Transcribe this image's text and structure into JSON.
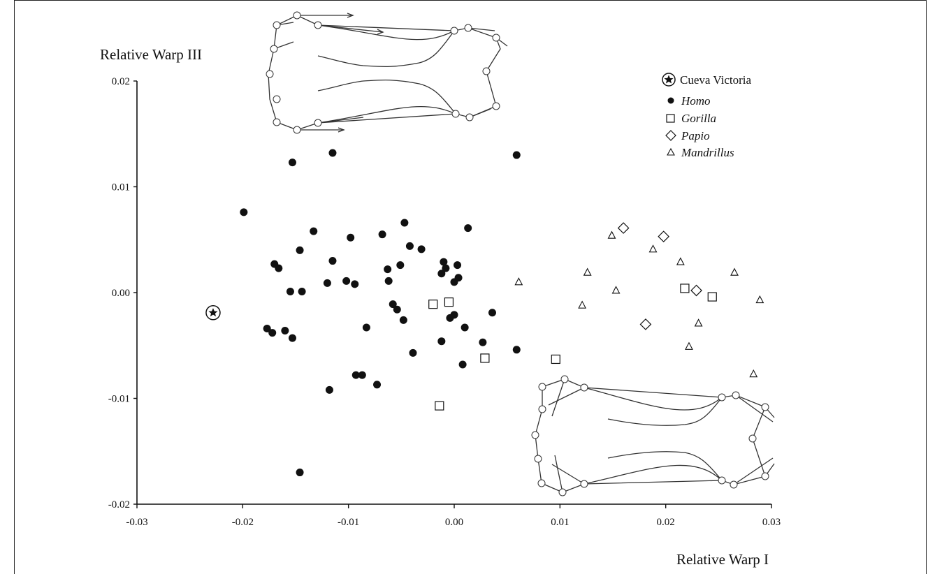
{
  "chart_data": {
    "type": "scatter",
    "title": "",
    "xlabel": "Relative Warp I",
    "ylabel": "Relative Warp III",
    "xlim": [
      -0.03,
      0.03
    ],
    "ylim": [
      -0.02,
      0.02
    ],
    "xticks": [
      "-0.03",
      "-0.02",
      "-0.01",
      "0.00",
      "0.01",
      "0.02",
      "0.03"
    ],
    "yticks": [
      "0.02",
      "0.01",
      "0.00",
      "-0.01",
      "-0.02"
    ],
    "grid": false,
    "legend_position": "top-right",
    "series": [
      {
        "name": "Cueva Victoria",
        "marker": "circled-star",
        "points": [
          [
            -0.0228,
            -0.0019
          ]
        ]
      },
      {
        "name": "Homo",
        "marker": "filled-circle",
        "points": [
          [
            -0.0115,
            0.0132
          ],
          [
            -0.0153,
            0.0123
          ],
          [
            0.0059,
            0.013
          ],
          [
            -0.0199,
            0.0076
          ],
          [
            -0.0133,
            0.0058
          ],
          [
            -0.0098,
            0.0052
          ],
          [
            -0.0068,
            0.0055
          ],
          [
            -0.0047,
            0.0066
          ],
          [
            -0.0042,
            0.0044
          ],
          [
            -0.0031,
            0.0041
          ],
          [
            0.0013,
            0.0061
          ],
          [
            -0.0146,
            0.004
          ],
          [
            -0.017,
            0.0027
          ],
          [
            -0.0166,
            0.0023
          ],
          [
            -0.0115,
            0.003
          ],
          [
            -0.012,
            0.0009
          ],
          [
            -0.0155,
            0.0001
          ],
          [
            -0.0144,
            0.0001
          ],
          [
            -0.0102,
            0.0011
          ],
          [
            -0.0094,
            0.0008
          ],
          [
            -0.0063,
            0.0022
          ],
          [
            -0.0051,
            0.0026
          ],
          [
            -0.0062,
            0.0011
          ],
          [
            -0.001,
            0.0029
          ],
          [
            -0.0008,
            0.0023
          ],
          [
            -0.0012,
            0.0018
          ],
          [
            0.0,
            0.001
          ],
          [
            0.0003,
            0.0026
          ],
          [
            0.0004,
            0.0014
          ],
          [
            -0.0058,
            -0.0011
          ],
          [
            -0.0054,
            -0.0016
          ],
          [
            -0.0048,
            -0.0026
          ],
          [
            -0.0004,
            -0.0024
          ],
          [
            0.0,
            -0.0021
          ],
          [
            0.001,
            -0.0033
          ],
          [
            0.0036,
            -0.0019
          ],
          [
            -0.0177,
            -0.0034
          ],
          [
            -0.0172,
            -0.0038
          ],
          [
            -0.016,
            -0.0036
          ],
          [
            -0.0153,
            -0.0043
          ],
          [
            -0.0083,
            -0.0033
          ],
          [
            -0.0039,
            -0.0057
          ],
          [
            -0.0012,
            -0.0046
          ],
          [
            0.0027,
            -0.0047
          ],
          [
            0.0059,
            -0.0054
          ],
          [
            0.0008,
            -0.0068
          ],
          [
            -0.0093,
            -0.0078
          ],
          [
            -0.0087,
            -0.0078
          ],
          [
            -0.0073,
            -0.0087
          ],
          [
            -0.0118,
            -0.0092
          ],
          [
            -0.0146,
            -0.017
          ]
        ]
      },
      {
        "name": "Gorilla",
        "marker": "open-square",
        "points": [
          [
            -0.002,
            -0.0011
          ],
          [
            -0.0005,
            -0.0009
          ],
          [
            0.0029,
            -0.0062
          ],
          [
            0.0096,
            -0.0063
          ],
          [
            -0.0014,
            -0.0107
          ],
          [
            0.0218,
            0.0004
          ],
          [
            0.0244,
            -0.0004
          ]
        ]
      },
      {
        "name": "Papio",
        "marker": "open-diamond",
        "points": [
          [
            0.016,
            0.0061
          ],
          [
            0.0198,
            0.0053
          ],
          [
            0.0229,
            0.0002
          ],
          [
            0.0181,
            -0.003
          ]
        ]
      },
      {
        "name": "Mandrillus",
        "marker": "open-triangle",
        "points": [
          [
            0.0061,
            0.001
          ],
          [
            0.0126,
            0.0019
          ],
          [
            0.0149,
            0.0054
          ],
          [
            0.0188,
            0.0041
          ],
          [
            0.0214,
            0.0029
          ],
          [
            0.0265,
            0.0019
          ],
          [
            0.0121,
            -0.0012
          ],
          [
            0.0153,
            0.0002
          ],
          [
            0.0231,
            -0.0029
          ],
          [
            0.0222,
            -0.0051
          ],
          [
            0.0289,
            -0.0007
          ],
          [
            0.0283,
            -0.0077
          ]
        ]
      }
    ]
  }
}
